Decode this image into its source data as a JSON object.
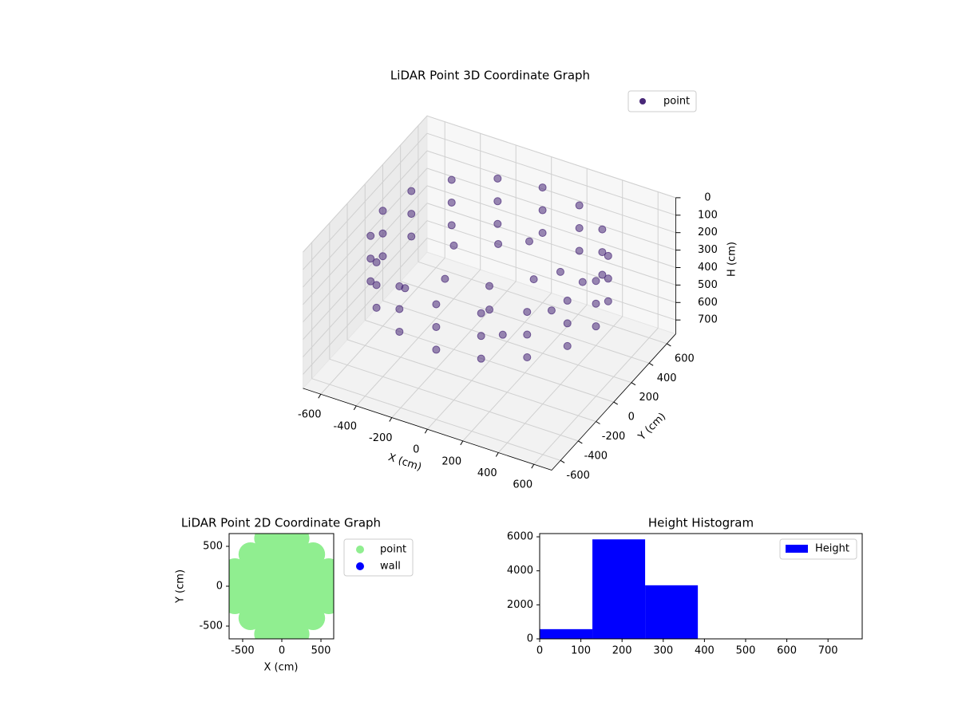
{
  "chart_data": [
    {
      "type": "scatter3d",
      "title": "LiDAR Point 3D Coordinate Graph",
      "xlabel": "X (cm)",
      "ylabel": "Y (cm)",
      "zlabel": "H (cm)",
      "xlim": [
        -700,
        700
      ],
      "ylim": [
        -700,
        700
      ],
      "zlim": [
        780,
        0
      ],
      "xticks": [
        -600,
        -400,
        -200,
        0,
        200,
        400,
        600
      ],
      "yticks": [
        -600,
        -400,
        -200,
        0,
        200,
        400,
        600
      ],
      "zticks": [
        0,
        100,
        200,
        300,
        400,
        500,
        600,
        700
      ],
      "legend": "upper right",
      "series": [
        {
          "name": "point",
          "color": "#482878",
          "x": [
            600,
            554,
            424,
            230,
            0,
            -230,
            -424,
            -554,
            -600,
            -554,
            -424,
            -230,
            0,
            230,
            424,
            554,
            600,
            554,
            424,
            230,
            0,
            -230,
            -424,
            -554,
            -600,
            -554,
            -424,
            -230,
            0,
            230,
            424,
            554,
            600,
            554,
            424,
            230,
            0,
            -230,
            -424,
            -554,
            -600,
            -554,
            -424,
            -230,
            0,
            230,
            424,
            554,
            0,
            200,
            -200,
            100,
            300,
            -300,
            400,
            -100,
            250,
            -350,
            100,
            450
          ],
          "y": [
            0,
            230,
            424,
            554,
            600,
            554,
            424,
            230,
            0,
            -230,
            -424,
            -554,
            -600,
            -554,
            -424,
            -230,
            0,
            230,
            424,
            554,
            600,
            554,
            424,
            230,
            0,
            -230,
            -424,
            -554,
            -600,
            -554,
            -424,
            -230,
            0,
            230,
            424,
            554,
            600,
            554,
            424,
            230,
            0,
            -230,
            -424,
            -554,
            -600,
            -554,
            -424,
            -230,
            0,
            100,
            -100,
            -200,
            200,
            200,
            -100,
            300,
            -350,
            -250,
            250,
            150
          ],
          "z": [
            120,
            120,
            120,
            120,
            120,
            120,
            120,
            120,
            120,
            120,
            120,
            120,
            120,
            120,
            120,
            120,
            250,
            250,
            250,
            250,
            250,
            250,
            250,
            250,
            250,
            250,
            250,
            250,
            250,
            250,
            250,
            250,
            380,
            380,
            380,
            380,
            380,
            380,
            380,
            380,
            380,
            380,
            380,
            380,
            380,
            380,
            380,
            380,
            350,
            300,
            320,
            340,
            280,
            330,
            300,
            310,
            350,
            340,
            200,
            260
          ]
        }
      ]
    },
    {
      "type": "scatter",
      "title": "LiDAR Point 2D Coordinate Graph",
      "xlabel": "X (cm)",
      "ylabel": "Y (cm)",
      "xlim": [
        -673,
        663
      ],
      "ylim": [
        -660,
        660
      ],
      "xticks": [
        -500,
        0,
        500
      ],
      "yticks": [
        -500,
        0,
        500
      ],
      "legend": "outside right",
      "series": [
        {
          "name": "point",
          "color": "#90ee90",
          "x": [
            -600,
            -600,
            -600,
            -400,
            -400,
            -400,
            -400,
            -400,
            -200,
            -200,
            -200,
            -200,
            -200,
            -200,
            -200,
            0,
            0,
            0,
            0,
            0,
            0,
            0,
            200,
            200,
            200,
            200,
            200,
            200,
            200,
            400,
            400,
            400,
            400,
            400,
            600,
            600,
            600
          ],
          "y": [
            -200,
            0,
            200,
            -400,
            -200,
            0,
            200,
            400,
            -600,
            -400,
            -200,
            0,
            200,
            400,
            600,
            -600,
            -400,
            -200,
            0,
            200,
            400,
            600,
            -600,
            -400,
            -200,
            0,
            200,
            400,
            600,
            -400,
            -200,
            0,
            200,
            400,
            -200,
            0,
            200
          ]
        },
        {
          "name": "wall",
          "color": "#0000ff",
          "x": [],
          "y": []
        }
      ]
    },
    {
      "type": "histogram",
      "title": "Height Histogram",
      "xlim": [
        0,
        783
      ],
      "ylim": [
        0,
        6190
      ],
      "xticks": [
        0,
        100,
        200,
        300,
        400,
        500,
        600,
        700
      ],
      "yticks": [
        0,
        2000,
        4000,
        6000
      ],
      "legend": "upper right",
      "bins": [
        0,
        128,
        256,
        384,
        512,
        640,
        768
      ],
      "series": [
        {
          "name": "Height",
          "color": "#0000ff",
          "values": [
            570,
            5850,
            3150,
            0,
            0,
            0
          ]
        }
      ]
    }
  ]
}
